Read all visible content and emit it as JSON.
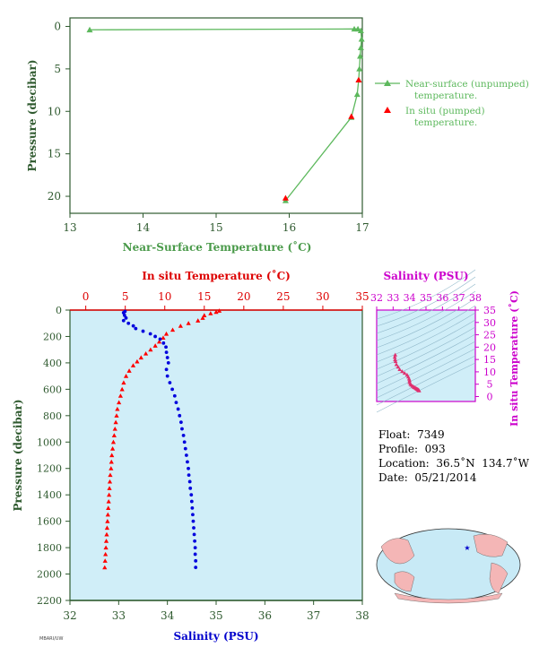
{
  "chart_data": [
    {
      "type": "line",
      "panel": "near-surface",
      "xlabel": "Near-Surface Temperature (˚C)",
      "ylabel": "Pressure (decibar)",
      "xlim": [
        13,
        17
      ],
      "ylim": [
        22,
        -1
      ],
      "xticks": [
        13,
        14,
        15,
        16,
        17
      ],
      "yticks": [
        0,
        5,
        10,
        15,
        20
      ],
      "legend": [
        "Near-surface (unpumped) temperature.",
        "In situ (pumped) temperature."
      ],
      "legend_position": "right",
      "series": [
        {
          "name": "Near-surface (unpumped) temperature.",
          "color": "#5cb85c",
          "points": [
            {
              "t": 13.27,
              "p": 0.4
            },
            {
              "t": 16.89,
              "p": 0.3
            },
            {
              "t": 16.94,
              "p": 0.3
            },
            {
              "t": 16.98,
              "p": 0.5
            },
            {
              "t": 16.99,
              "p": 1.5
            },
            {
              "t": 16.98,
              "p": 2.5
            },
            {
              "t": 16.97,
              "p": 3.5
            },
            {
              "t": 16.96,
              "p": 5.0
            },
            {
              "t": 16.95,
              "p": 6.3
            },
            {
              "t": 16.93,
              "p": 8.0
            },
            {
              "t": 16.85,
              "p": 10.7
            },
            {
              "t": 15.95,
              "p": 20.5
            }
          ]
        },
        {
          "name": "In situ (pumped) temperature.",
          "color": "#ff0000",
          "points": [
            {
              "t": 16.95,
              "p": 6.3
            },
            {
              "t": 16.85,
              "p": 10.6
            },
            {
              "t": 15.95,
              "p": 20.2
            }
          ]
        }
      ]
    },
    {
      "type": "scatter",
      "panel": "profile",
      "top_xlabel": "In situ Temperature (˚C)",
      "bottom_xlabel": "Salinity (PSU)",
      "ylabel": "Pressure (decibar)",
      "temp_lim": [
        -2,
        35
      ],
      "sal_lim": [
        32,
        38
      ],
      "ylim": [
        2200,
        0
      ],
      "temp_ticks": [
        0,
        5,
        10,
        15,
        20,
        25,
        30,
        35
      ],
      "sal_ticks": [
        32,
        33,
        34,
        35,
        36,
        37,
        38
      ],
      "yticks": [
        0,
        200,
        400,
        600,
        800,
        1000,
        1200,
        1400,
        1600,
        1800,
        2000,
        2200
      ],
      "series": [
        {
          "name": "Temperature",
          "color": "#ff0000",
          "profile": [
            {
              "p": 5,
              "v": 16.9
            },
            {
              "p": 15,
              "v": 16.5
            },
            {
              "p": 25,
              "v": 15.8
            },
            {
              "p": 40,
              "v": 15.0
            },
            {
              "p": 60,
              "v": 14.8
            },
            {
              "p": 80,
              "v": 14.2
            },
            {
              "p": 100,
              "v": 13.0
            },
            {
              "p": 120,
              "v": 12.0
            },
            {
              "p": 150,
              "v": 11.0
            },
            {
              "p": 180,
              "v": 10.2
            },
            {
              "p": 210,
              "v": 9.8
            },
            {
              "p": 240,
              "v": 9.3
            },
            {
              "p": 270,
              "v": 8.8
            },
            {
              "p": 300,
              "v": 8.2
            },
            {
              "p": 330,
              "v": 7.6
            },
            {
              "p": 360,
              "v": 7.0
            },
            {
              "p": 390,
              "v": 6.5
            },
            {
              "p": 420,
              "v": 6.0
            },
            {
              "p": 460,
              "v": 5.5
            },
            {
              "p": 500,
              "v": 5.1
            },
            {
              "p": 550,
              "v": 4.8
            },
            {
              "p": 600,
              "v": 4.6
            },
            {
              "p": 650,
              "v": 4.4
            },
            {
              "p": 700,
              "v": 4.2
            },
            {
              "p": 750,
              "v": 4.0
            },
            {
              "p": 800,
              "v": 3.9
            },
            {
              "p": 850,
              "v": 3.8
            },
            {
              "p": 900,
              "v": 3.7
            },
            {
              "p": 950,
              "v": 3.6
            },
            {
              "p": 1000,
              "v": 3.5
            },
            {
              "p": 1050,
              "v": 3.4
            },
            {
              "p": 1100,
              "v": 3.3
            },
            {
              "p": 1150,
              "v": 3.25
            },
            {
              "p": 1200,
              "v": 3.2
            },
            {
              "p": 1250,
              "v": 3.1
            },
            {
              "p": 1300,
              "v": 3.05
            },
            {
              "p": 1350,
              "v": 3.0
            },
            {
              "p": 1400,
              "v": 2.95
            },
            {
              "p": 1450,
              "v": 2.9
            },
            {
              "p": 1500,
              "v": 2.85
            },
            {
              "p": 1550,
              "v": 2.8
            },
            {
              "p": 1600,
              "v": 2.75
            },
            {
              "p": 1650,
              "v": 2.7
            },
            {
              "p": 1700,
              "v": 2.65
            },
            {
              "p": 1750,
              "v": 2.6
            },
            {
              "p": 1800,
              "v": 2.55
            },
            {
              "p": 1850,
              "v": 2.5
            },
            {
              "p": 1900,
              "v": 2.45
            },
            {
              "p": 1950,
              "v": 2.4
            }
          ]
        },
        {
          "name": "Salinity",
          "color": "#0000dd",
          "profile": [
            {
              "p": 10,
              "v": 33.13
            },
            {
              "p": 20,
              "v": 33.1
            },
            {
              "p": 40,
              "v": 33.12
            },
            {
              "p": 60,
              "v": 33.15
            },
            {
              "p": 80,
              "v": 33.1
            },
            {
              "p": 100,
              "v": 33.2
            },
            {
              "p": 120,
              "v": 33.3
            },
            {
              "p": 140,
              "v": 33.35
            },
            {
              "p": 160,
              "v": 33.5
            },
            {
              "p": 180,
              "v": 33.65
            },
            {
              "p": 200,
              "v": 33.75
            },
            {
              "p": 220,
              "v": 33.85
            },
            {
              "p": 250,
              "v": 33.92
            },
            {
              "p": 280,
              "v": 33.97
            },
            {
              "p": 320,
              "v": 33.98
            },
            {
              "p": 360,
              "v": 34.0
            },
            {
              "p": 400,
              "v": 34.02
            },
            {
              "p": 450,
              "v": 33.98
            },
            {
              "p": 500,
              "v": 34.0
            },
            {
              "p": 550,
              "v": 34.05
            },
            {
              "p": 600,
              "v": 34.1
            },
            {
              "p": 650,
              "v": 34.15
            },
            {
              "p": 700,
              "v": 34.18
            },
            {
              "p": 750,
              "v": 34.22
            },
            {
              "p": 800,
              "v": 34.25
            },
            {
              "p": 850,
              "v": 34.28
            },
            {
              "p": 900,
              "v": 34.3
            },
            {
              "p": 950,
              "v": 34.33
            },
            {
              "p": 1000,
              "v": 34.35
            },
            {
              "p": 1050,
              "v": 34.37
            },
            {
              "p": 1100,
              "v": 34.39
            },
            {
              "p": 1150,
              "v": 34.41
            },
            {
              "p": 1200,
              "v": 34.43
            },
            {
              "p": 1250,
              "v": 34.44
            },
            {
              "p": 1300,
              "v": 34.46
            },
            {
              "p": 1350,
              "v": 34.47
            },
            {
              "p": 1400,
              "v": 34.49
            },
            {
              "p": 1450,
              "v": 34.5
            },
            {
              "p": 1500,
              "v": 34.51
            },
            {
              "p": 1550,
              "v": 34.52
            },
            {
              "p": 1600,
              "v": 34.53
            },
            {
              "p": 1650,
              "v": 34.54
            },
            {
              "p": 1700,
              "v": 34.55
            },
            {
              "p": 1750,
              "v": 34.56
            },
            {
              "p": 1800,
              "v": 34.57
            },
            {
              "p": 1850,
              "v": 34.57
            },
            {
              "p": 1900,
              "v": 34.58
            },
            {
              "p": 1950,
              "v": 34.58
            }
          ]
        }
      ]
    },
    {
      "type": "scatter",
      "panel": "ts-diagram",
      "top_xlabel": "Salinity (PSU)",
      "right_ylabel": "In situ Temperature (˚C)",
      "xlim": [
        32,
        38
      ],
      "ylim": [
        -2,
        35
      ],
      "xticks": [
        32,
        33,
        34,
        35,
        36,
        37,
        38
      ],
      "yticks": [
        0,
        5,
        10,
        15,
        20,
        25,
        30,
        35
      ],
      "grid": false,
      "series": [
        {
          "name": "T-S",
          "color": "#e0306f",
          "points": [
            {
              "s": 33.13,
              "t": 16.9
            },
            {
              "s": 33.1,
              "t": 16.0
            },
            {
              "s": 33.12,
              "t": 15.0
            },
            {
              "s": 33.15,
              "t": 14.2
            },
            {
              "s": 33.2,
              "t": 13.0
            },
            {
              "s": 33.3,
              "t": 12.0
            },
            {
              "s": 33.4,
              "t": 11.0
            },
            {
              "s": 33.55,
              "t": 10.2
            },
            {
              "s": 33.7,
              "t": 9.5
            },
            {
              "s": 33.85,
              "t": 8.8
            },
            {
              "s": 33.92,
              "t": 8.0
            },
            {
              "s": 33.97,
              "t": 7.2
            },
            {
              "s": 34.0,
              "t": 6.5
            },
            {
              "s": 34.0,
              "t": 5.8
            },
            {
              "s": 34.05,
              "t": 5.1
            },
            {
              "s": 34.1,
              "t": 4.7
            },
            {
              "s": 34.18,
              "t": 4.3
            },
            {
              "s": 34.25,
              "t": 3.9
            },
            {
              "s": 34.3,
              "t": 3.7
            },
            {
              "s": 34.35,
              "t": 3.5
            },
            {
              "s": 34.4,
              "t": 3.3
            },
            {
              "s": 34.44,
              "t": 3.1
            },
            {
              "s": 34.47,
              "t": 3.0
            },
            {
              "s": 34.5,
              "t": 2.9
            },
            {
              "s": 34.52,
              "t": 2.8
            },
            {
              "s": 34.54,
              "t": 2.7
            },
            {
              "s": 34.56,
              "t": 2.6
            },
            {
              "s": 34.57,
              "t": 2.5
            },
            {
              "s": 34.58,
              "t": 2.4
            }
          ]
        }
      ]
    }
  ],
  "info": {
    "float_label": "Float:",
    "float_value": "7349",
    "profile_label": "Profile:",
    "profile_value": "093",
    "location_label": "Location:",
    "location_value": "36.5˚N  134.7˚W",
    "date_label": "Date:",
    "date_value": "05/21/2014"
  },
  "colors": {
    "axis_green": "#2f5a2f",
    "label_green": "#4a9a4a",
    "temp_red": "#dd0000",
    "sal_blue": "#0000cc",
    "ts_magenta": "#cc00cc",
    "panel_fill": "#d0eef8",
    "land": "#f4b6b6",
    "ocean": "#c8eaf6"
  },
  "footer": "MBARI/UW"
}
